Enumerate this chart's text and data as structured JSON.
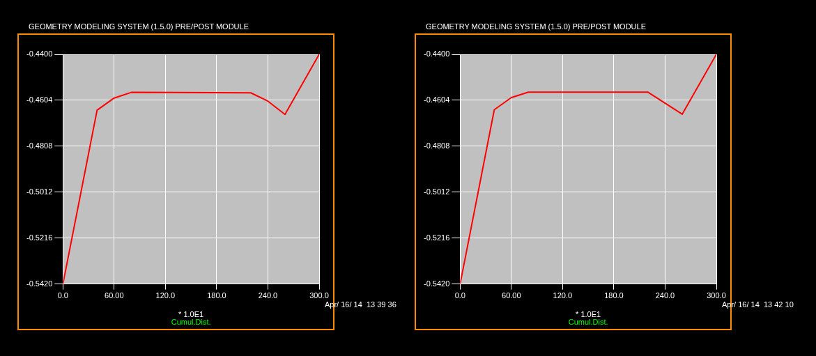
{
  "chart_data": [
    {
      "type": "line",
      "title": "GEOMETRY MODELING SYSTEM (1.5.0)  PRE/POST MODULE",
      "xlabel": "Cumul.Dist.",
      "annotations": [
        "* 1.0E1",
        "Apr/ 16/ 14  13 39 36"
      ],
      "x": [
        0,
        40,
        60,
        80,
        220,
        240,
        260,
        300
      ],
      "series": [
        {
          "color": "#ff0000",
          "values": [
            -0.542,
            -0.4648,
            -0.4594,
            -0.4569,
            -0.4571,
            -0.4608,
            -0.4667,
            -0.44
          ]
        }
      ],
      "xlim": [
        0,
        300
      ],
      "xticks": [
        {
          "value": 0,
          "label": "0.0"
        },
        {
          "value": 60,
          "label": "60.00"
        },
        {
          "value": 120,
          "label": "120.0"
        },
        {
          "value": 180,
          "label": "180.0"
        },
        {
          "value": 240,
          "label": "240.0"
        },
        {
          "value": 300,
          "label": "300.0"
        }
      ],
      "ylim": [
        -0.542,
        -0.44
      ],
      "yticks": [
        {
          "value": -0.542,
          "label": "-0.5420"
        },
        {
          "value": -0.5216,
          "label": "-0.5216"
        },
        {
          "value": -0.5012,
          "label": "-0.5012"
        },
        {
          "value": -0.4808,
          "label": "-0.4808"
        },
        {
          "value": -0.4604,
          "label": "-0.4604"
        },
        {
          "value": -0.44,
          "label": "-0.4400"
        }
      ],
      "grid": true,
      "legend": false,
      "marker": "none",
      "line_style": "solid"
    },
    {
      "type": "line",
      "title": "GEOMETRY MODELING SYSTEM (1.5.0)  PRE/POST MODULE",
      "xlabel": "Cumul.Dist.",
      "annotations": [
        "* 1.0E1",
        "Apr/ 16/ 14  13 42 10"
      ],
      "x": [
        0,
        40,
        60,
        80,
        200,
        220,
        260,
        300
      ],
      "series": [
        {
          "color": "#ff0000",
          "values": [
            -0.542,
            -0.4646,
            -0.4592,
            -0.4568,
            -0.4568,
            -0.4568,
            -0.4666,
            -0.44
          ]
        }
      ],
      "xlim": [
        0,
        300
      ],
      "xticks": [
        {
          "value": 0,
          "label": "0.0"
        },
        {
          "value": 60,
          "label": "60.00"
        },
        {
          "value": 120,
          "label": "120.0"
        },
        {
          "value": 180,
          "label": "180.0"
        },
        {
          "value": 240,
          "label": "240.0"
        },
        {
          "value": 300,
          "label": "300.0"
        }
      ],
      "ylim": [
        -0.542,
        -0.44
      ],
      "yticks": [
        {
          "value": -0.542,
          "label": "-0.5420"
        },
        {
          "value": -0.5216,
          "label": "-0.5216"
        },
        {
          "value": -0.5012,
          "label": "-0.5012"
        },
        {
          "value": -0.4808,
          "label": "-0.4808"
        },
        {
          "value": -0.4604,
          "label": "-0.4604"
        },
        {
          "value": -0.44,
          "label": "-0.4400"
        }
      ],
      "grid": true,
      "legend": false,
      "marker": "none",
      "line_style": "solid"
    }
  ]
}
